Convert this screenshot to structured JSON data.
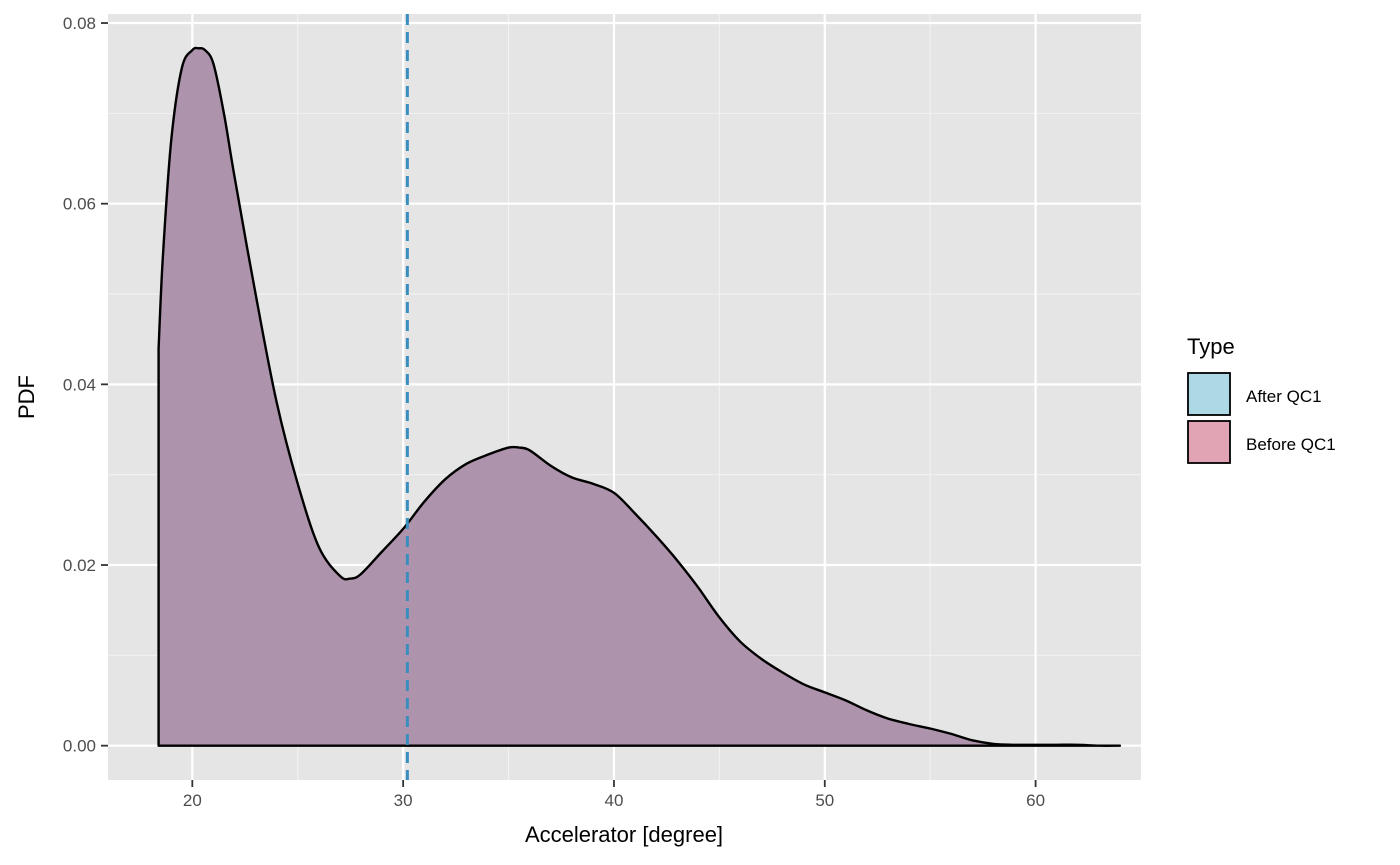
{
  "chart_data": {
    "type": "area",
    "title": "",
    "xlabel": "Accelerator [degree]",
    "ylabel": "PDF",
    "xlim": [
      16,
      65
    ],
    "ylim": [
      -0.0038,
      0.081
    ],
    "x_ticks": [
      20,
      30,
      40,
      50,
      60
    ],
    "y_ticks": [
      0.0,
      0.02,
      0.04,
      0.06,
      0.08
    ],
    "x_tick_labels": [
      "20",
      "30",
      "40",
      "50",
      "60"
    ],
    "y_tick_labels": [
      "0.00",
      "0.02",
      "0.04",
      "0.06",
      "0.08"
    ],
    "grid": true,
    "legend": {
      "title": "Type",
      "position": "right",
      "entries": [
        {
          "label": "After QC1",
          "color": "#add8e6"
        },
        {
          "label": "Before QC1",
          "color": "#e0a4b4"
        }
      ]
    },
    "series": [
      {
        "name": "Before QC1",
        "fill": "#ae93ad",
        "x": [
          18.4,
          18.6,
          19.0,
          19.5,
          20.0,
          20.3,
          20.6,
          21.0,
          21.5,
          22.0,
          23.0,
          24.0,
          25.0,
          26.0,
          27.0,
          27.5,
          28.0,
          29.0,
          30.0,
          31.0,
          32.0,
          33.0,
          34.0,
          35.0,
          35.5,
          36.0,
          37.0,
          38.0,
          39.0,
          40.0,
          41.0,
          42.0,
          43.0,
          44.0,
          45.0,
          46.0,
          47.0,
          48.0,
          49.0,
          50.0,
          51.0,
          52.0,
          53.0,
          54.0,
          55.0,
          56.0,
          57.0,
          58.0,
          59.0,
          60.0,
          61.0,
          62.0,
          63.0,
          64.0
        ],
        "y": [
          0.044,
          0.054,
          0.067,
          0.075,
          0.077,
          0.0772,
          0.077,
          0.0755,
          0.07,
          0.063,
          0.05,
          0.038,
          0.029,
          0.022,
          0.0188,
          0.0185,
          0.019,
          0.0215,
          0.024,
          0.027,
          0.0295,
          0.0312,
          0.0322,
          0.033,
          0.033,
          0.0327,
          0.031,
          0.0297,
          0.029,
          0.028,
          0.0257,
          0.0232,
          0.0205,
          0.0175,
          0.0142,
          0.0115,
          0.0096,
          0.0081,
          0.0068,
          0.0059,
          0.005,
          0.0039,
          0.003,
          0.0024,
          0.0019,
          0.0013,
          0.0006,
          0.0002,
          0.0001,
          0.0001,
          0.0001,
          0.0001,
          0.0,
          0.0
        ]
      }
    ],
    "vline": {
      "x": 30.2,
      "color": "#3a8ebf",
      "style": "dashed"
    }
  }
}
